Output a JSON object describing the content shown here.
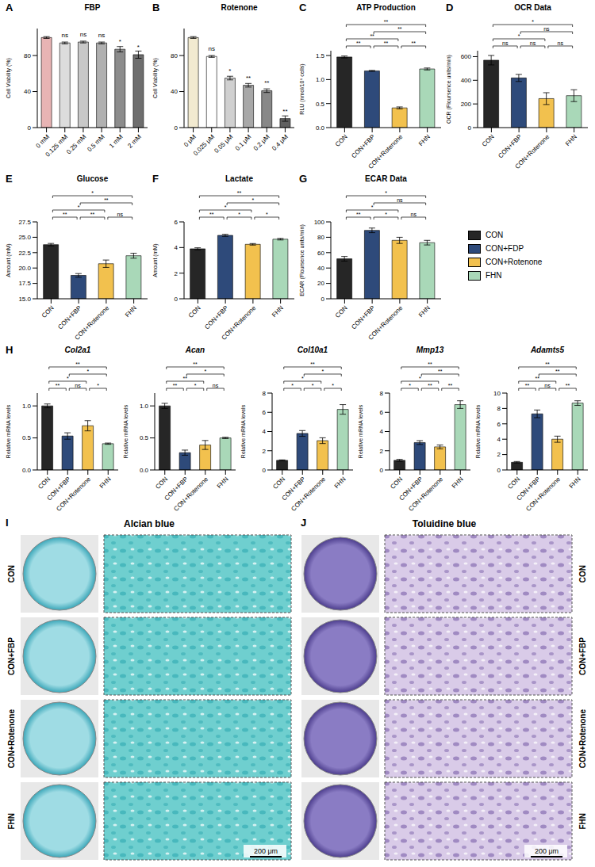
{
  "chart_data": [
    {
      "panel": "A",
      "type": "bar",
      "title": "FBP",
      "y_label": "Cell Viability (%)",
      "categories": [
        "0 mM",
        "0.125 mM",
        "0.25 mM",
        "0.5 mM",
        "1 mM",
        "2 mM"
      ],
      "values": [
        100,
        94,
        95,
        94,
        87,
        81
      ],
      "errors": [
        1,
        1,
        1,
        1,
        3,
        4
      ],
      "colors": [
        "#e8b4b4",
        "#dcdcdc",
        "#c8c8c8",
        "#b0b0b0",
        "#8c8c8c",
        "#6e6e6e"
      ],
      "annotations": [
        null,
        "ns",
        "ns",
        "ns",
        "*",
        "*"
      ],
      "ylim": [
        0,
        110
      ],
      "yticks": [
        0,
        40,
        80
      ]
    },
    {
      "panel": "B",
      "type": "bar",
      "title": "Rotenone",
      "y_label": "Cell Viability (%)",
      "categories": [
        "0 μM",
        "0.025 μM",
        "0.05 μM",
        "0.1 μM",
        "0.2 μM",
        "0.4 μM"
      ],
      "values": [
        100,
        79,
        55,
        47,
        41,
        10
      ],
      "errors": [
        1,
        1,
        2,
        2,
        2,
        3
      ],
      "colors": [
        "#f2ead0",
        "#ffffff",
        "#d0d0d0",
        "#a8a8a8",
        "#888888",
        "#606060"
      ],
      "annotations": [
        null,
        "ns",
        "*",
        "**",
        "**",
        "**"
      ],
      "ylim": [
        0,
        110
      ],
      "yticks": [
        0,
        40,
        80
      ]
    },
    {
      "panel": "C",
      "type": "bar",
      "title": "ATP Production",
      "y_label": "RLU (nmol/10⁶ cells)",
      "categories": [
        "CON",
        "CON+FBP",
        "CON+Rotenone",
        "FHN"
      ],
      "values": [
        1.47,
        1.18,
        0.41,
        1.22
      ],
      "errors": [
        0.02,
        0.01,
        0.02,
        0.02
      ],
      "colors": [
        "#262626",
        "#2e4a7a",
        "#f2c14e",
        "#a9d8b8"
      ],
      "ylim": [
        0,
        1.6
      ],
      "yticks": [
        {
          "value": 0,
          "label": "0.0"
        },
        0.5,
        {
          "value": 1,
          "label": "1.0"
        },
        1.5
      ],
      "comparisons": [
        {
          "pair": [
            0,
            1
          ],
          "label": "**"
        },
        {
          "pair": [
            1,
            2
          ],
          "label": "**"
        },
        {
          "pair": [
            2,
            3
          ],
          "label": "**"
        },
        {
          "pair": [
            0,
            2
          ],
          "label": "**"
        },
        {
          "pair": [
            1,
            3
          ],
          "label": "**"
        },
        {
          "pair": [
            0,
            3
          ],
          "label": "**"
        }
      ]
    },
    {
      "panel": "D",
      "type": "bar",
      "title": "OCR Data",
      "y_label": "OCR (Floursence units/min)",
      "categories": [
        "CON",
        "CON+FBP",
        "CON+Rotenone",
        "FHN"
      ],
      "values": [
        570,
        420,
        245,
        270
      ],
      "errors": [
        40,
        30,
        50,
        50
      ],
      "colors": [
        "#262626",
        "#2e4a7a",
        "#f2c14e",
        "#a9d8b8"
      ],
      "ylim": [
        0,
        650
      ],
      "yticks": [
        0,
        200,
        400,
        600
      ],
      "comparisons": [
        {
          "pair": [
            0,
            1
          ],
          "label": "ns"
        },
        {
          "pair": [
            1,
            2
          ],
          "label": "ns"
        },
        {
          "pair": [
            2,
            3
          ],
          "label": "ns"
        },
        {
          "pair": [
            0,
            2
          ],
          "label": "*"
        },
        {
          "pair": [
            1,
            3
          ],
          "label": "ns"
        },
        {
          "pair": [
            0,
            3
          ],
          "label": "*"
        }
      ]
    },
    {
      "panel": "E",
      "type": "bar",
      "title": "Glucose",
      "y_label": "Amount (mM)",
      "categories": [
        "CON",
        "CON+FBP",
        "CON+Rotenone",
        "FHN"
      ],
      "values": [
        23.8,
        18.8,
        20.7,
        22.0
      ],
      "errors": [
        0.2,
        0.3,
        0.6,
        0.4
      ],
      "colors": [
        "#262626",
        "#2e4a7a",
        "#f2c14e",
        "#a9d8b8"
      ],
      "ylim": [
        15,
        27.5
      ],
      "yticks": [
        {
          "value": 15,
          "label": "15.0"
        },
        17.5,
        {
          "value": 20,
          "label": "20.0"
        },
        22.5,
        {
          "value": 25,
          "label": "25.0"
        },
        27.5
      ],
      "comparisons": [
        {
          "pair": [
            0,
            1
          ],
          "label": "**"
        },
        {
          "pair": [
            1,
            2
          ],
          "label": "**"
        },
        {
          "pair": [
            2,
            3
          ],
          "label": "ns"
        },
        {
          "pair": [
            0,
            2
          ],
          "label": "*"
        },
        {
          "pair": [
            1,
            3
          ],
          "label": "**"
        },
        {
          "pair": [
            0,
            3
          ],
          "label": "*"
        }
      ]
    },
    {
      "panel": "F",
      "type": "bar",
      "title": "Lactate",
      "y_label": "Amount (mM)",
      "categories": [
        "CON",
        "CON+FBP",
        "CON+Rotenone",
        "FHN"
      ],
      "values": [
        3.9,
        4.95,
        4.25,
        4.65
      ],
      "errors": [
        0.08,
        0.08,
        0.06,
        0.06
      ],
      "colors": [
        "#262626",
        "#2e4a7a",
        "#f2c14e",
        "#a9d8b8"
      ],
      "ylim": [
        0,
        6
      ],
      "yticks": [
        0,
        2,
        4,
        6
      ],
      "comparisons": [
        {
          "pair": [
            0,
            1
          ],
          "label": "**"
        },
        {
          "pair": [
            1,
            2
          ],
          "label": "*"
        },
        {
          "pair": [
            2,
            3
          ],
          "label": "*"
        },
        {
          "pair": [
            0,
            2
          ],
          "label": "*"
        },
        {
          "pair": [
            1,
            3
          ],
          "label": "*"
        },
        {
          "pair": [
            0,
            3
          ],
          "label": "**"
        }
      ]
    },
    {
      "panel": "G",
      "type": "bar",
      "title": "ECAR Data",
      "y_label": "ECAR (Floursence units/min)",
      "categories": [
        "CON",
        "CON+FBP",
        "CON+Rotenone",
        "FHN"
      ],
      "values": [
        52,
        89,
        76,
        73
      ],
      "errors": [
        3,
        3,
        4,
        3
      ],
      "colors": [
        "#262626",
        "#2e4a7a",
        "#f2c14e",
        "#a9d8b8"
      ],
      "ylim": [
        0,
        100
      ],
      "yticks": [
        0,
        20,
        40,
        60,
        80,
        100
      ],
      "comparisons": [
        {
          "pair": [
            0,
            1
          ],
          "label": "**"
        },
        {
          "pair": [
            1,
            2
          ],
          "label": "*"
        },
        {
          "pair": [
            2,
            3
          ],
          "label": "ns"
        },
        {
          "pair": [
            0,
            2
          ],
          "label": "*"
        },
        {
          "pair": [
            1,
            3
          ],
          "label": "ns"
        },
        {
          "pair": [
            0,
            3
          ],
          "label": "*"
        }
      ]
    },
    {
      "panel": "H",
      "type": "bar",
      "title": "Col2a1",
      "y_label": "Relative mRNA levels",
      "categories": [
        "CON",
        "CON+FBP",
        "CON+Rotenone",
        "FHN"
      ],
      "values": [
        1.0,
        0.53,
        0.69,
        0.41
      ],
      "errors": [
        0.03,
        0.05,
        0.08,
        0.01
      ],
      "colors": [
        "#262626",
        "#2e4a7a",
        "#f2c14e",
        "#a9d8b8"
      ],
      "ylim": [
        0,
        1.2
      ],
      "yticks": [
        {
          "value": 0,
          "label": "0.0"
        },
        0.5,
        {
          "value": 1,
          "label": "1.0"
        }
      ],
      "comparisons": [
        {
          "pair": [
            0,
            1
          ],
          "label": "**"
        },
        {
          "pair": [
            1,
            2
          ],
          "label": "ns"
        },
        {
          "pair": [
            2,
            3
          ],
          "label": "*"
        },
        {
          "pair": [
            0,
            2
          ],
          "label": "*"
        },
        {
          "pair": [
            1,
            3
          ],
          "label": "*"
        },
        {
          "pair": [
            0,
            3
          ],
          "label": "**"
        }
      ]
    },
    {
      "type": "bar",
      "title": "Acan",
      "y_label": "Relative mRNA levels",
      "categories": [
        "CON",
        "CON+FBP",
        "CON+Rotenone",
        "FHN"
      ],
      "values": [
        1.0,
        0.27,
        0.39,
        0.5
      ],
      "errors": [
        0.04,
        0.04,
        0.07,
        0.01
      ],
      "colors": [
        "#262626",
        "#2e4a7a",
        "#f2c14e",
        "#a9d8b8"
      ],
      "ylim": [
        0,
        1.2
      ],
      "yticks": [
        {
          "value": 0,
          "label": "0.0"
        },
        0.5,
        {
          "value": 1,
          "label": "1.0"
        }
      ],
      "comparisons": [
        {
          "pair": [
            0,
            1
          ],
          "label": "**"
        },
        {
          "pair": [
            1,
            2
          ],
          "label": "*"
        },
        {
          "pair": [
            2,
            3
          ],
          "label": "ns"
        },
        {
          "pair": [
            0,
            2
          ],
          "label": "**"
        },
        {
          "pair": [
            1,
            3
          ],
          "label": "*"
        },
        {
          "pair": [
            0,
            3
          ],
          "label": "**"
        }
      ]
    },
    {
      "type": "bar",
      "title": "Col10a1",
      "y_label": "Relative mRNA levels",
      "categories": [
        "CON",
        "CON+FBP",
        "CON+Rotenone",
        "FHN"
      ],
      "values": [
        1.0,
        3.8,
        3.05,
        6.3
      ],
      "errors": [
        0.05,
        0.3,
        0.3,
        0.5
      ],
      "colors": [
        "#262626",
        "#2e4a7a",
        "#f2c14e",
        "#a9d8b8"
      ],
      "ylim": [
        0,
        8
      ],
      "yticks": [
        0,
        2,
        4,
        6,
        8
      ],
      "comparisons": [
        {
          "pair": [
            0,
            1
          ],
          "label": "*"
        },
        {
          "pair": [
            1,
            2
          ],
          "label": "*"
        },
        {
          "pair": [
            2,
            3
          ],
          "label": "*"
        },
        {
          "pair": [
            0,
            2
          ],
          "label": "*"
        },
        {
          "pair": [
            1,
            3
          ],
          "label": "*"
        },
        {
          "pair": [
            0,
            3
          ],
          "label": "**"
        }
      ]
    },
    {
      "type": "bar",
      "title": "Mmp13",
      "y_label": "Relative mRNA levels",
      "categories": [
        "CON",
        "CON+FBP",
        "CON+Rotenone",
        "FHN"
      ],
      "values": [
        1.0,
        2.85,
        2.4,
        6.8
      ],
      "errors": [
        0.1,
        0.2,
        0.2,
        0.4
      ],
      "colors": [
        "#262626",
        "#2e4a7a",
        "#f2c14e",
        "#a9d8b8"
      ],
      "ylim": [
        0,
        8
      ],
      "yticks": [
        0,
        2,
        4,
        6,
        8
      ],
      "comparisons": [
        {
          "pair": [
            0,
            1
          ],
          "label": "*"
        },
        {
          "pair": [
            1,
            2
          ],
          "label": "**"
        },
        {
          "pair": [
            2,
            3
          ],
          "label": "**"
        },
        {
          "pair": [
            0,
            2
          ],
          "label": "*"
        },
        {
          "pair": [
            1,
            3
          ],
          "label": "**"
        },
        {
          "pair": [
            0,
            3
          ],
          "label": "**"
        }
      ]
    },
    {
      "type": "bar",
      "title": "Adamts5",
      "y_label": "Relative mRNA levels",
      "categories": [
        "CON",
        "CON+FBP",
        "CON+Rotenone",
        "FHN"
      ],
      "values": [
        1.0,
        7.3,
        4.0,
        8.7
      ],
      "errors": [
        0.1,
        0.5,
        0.4,
        0.3
      ],
      "colors": [
        "#262626",
        "#2e4a7a",
        "#f2c14e",
        "#a9d8b8"
      ],
      "ylim": [
        0,
        10
      ],
      "yticks": [
        0,
        2,
        4,
        6,
        8,
        10
      ],
      "comparisons": [
        {
          "pair": [
            0,
            1
          ],
          "label": "**"
        },
        {
          "pair": [
            1,
            2
          ],
          "label": "ns"
        },
        {
          "pair": [
            2,
            3
          ],
          "label": "**"
        },
        {
          "pair": [
            0,
            2
          ],
          "label": "**"
        },
        {
          "pair": [
            1,
            3
          ],
          "label": "**"
        },
        {
          "pair": [
            0,
            3
          ],
          "label": "**"
        }
      ]
    }
  ],
  "legend_box": {
    "entries": [
      {
        "name": "CON",
        "color": "#262626"
      },
      {
        "name": "CON+FDP",
        "color": "#2e4a7a"
      },
      {
        "name": "CON+Rotenone",
        "color": "#f2c14e"
      },
      {
        "name": "FHN",
        "color": "#a9d8b8"
      }
    ]
  },
  "images": [
    {
      "panel": "I",
      "title": "Alcian blue",
      "rows": [
        "CON",
        "CON+FBP",
        "CON+Rotenone",
        "FHN"
      ],
      "scale_bar": "200 μm"
    },
    {
      "panel": "J",
      "title": "Toluidine blue",
      "rows": [
        "CON",
        "CON+FBP",
        "CON+Rotenone",
        "FHN"
      ],
      "scale_bar": "200 μm"
    }
  ]
}
